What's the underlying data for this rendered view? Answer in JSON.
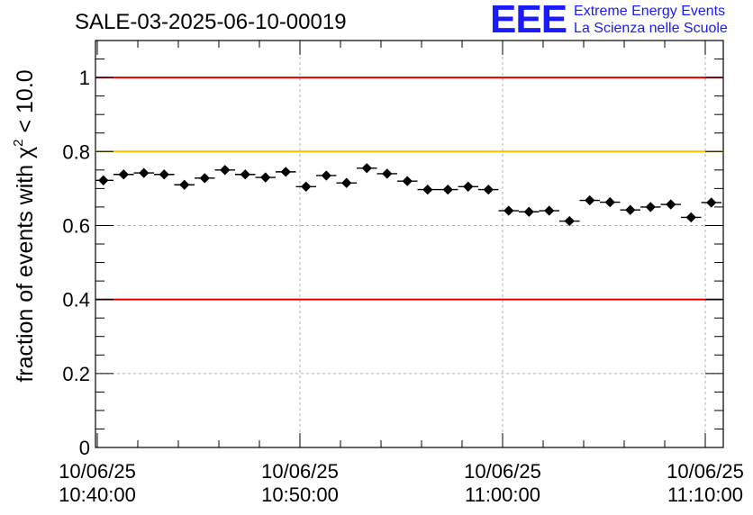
{
  "chart_data": {
    "type": "scatter",
    "title": "SALE-03-2025-06-10-00019",
    "ylabel_main": "fraction of events with χ",
    "ylabel_sup": "2",
    "ylabel_tail": " < 10.0",
    "xlabel": "",
    "xlim_minutes": [
      0,
      31
    ],
    "ylim": [
      0,
      1.1
    ],
    "y_ticks": [
      {
        "value": 0,
        "label": "0"
      },
      {
        "value": 0.2,
        "label": "0.2"
      },
      {
        "value": 0.4,
        "label": "0.4"
      },
      {
        "value": 0.6,
        "label": "0.6"
      },
      {
        "value": 0.8,
        "label": "0.8"
      },
      {
        "value": 1,
        "label": "1"
      }
    ],
    "x_ticks": [
      {
        "minute": 0,
        "date": "10/06/25",
        "time": "10:40:00"
      },
      {
        "minute": 10,
        "date": "10/06/25",
        "time": "10:50:00"
      },
      {
        "minute": 20,
        "date": "10/06/25",
        "time": "11:00:00"
      },
      {
        "minute": 30,
        "date": "10/06/25",
        "time": "11:10:00"
      }
    ],
    "bin_width_minutes": 1,
    "grid": true,
    "reference_lines": [
      {
        "y": 1.0,
        "color": "#e00000"
      },
      {
        "y": 0.8,
        "color": "#ffc000"
      },
      {
        "y": 0.4,
        "color": "#e00000"
      }
    ],
    "series": [
      {
        "name": "fraction",
        "x_minutes": [
          0.3,
          1.3,
          2.3,
          3.3,
          4.3,
          5.3,
          6.3,
          7.3,
          8.3,
          9.3,
          10.3,
          11.3,
          12.3,
          13.3,
          14.3,
          15.3,
          16.3,
          17.3,
          18.3,
          19.3,
          20.3,
          21.3,
          22.3,
          23.3,
          24.3,
          25.3,
          26.3,
          27.3,
          28.3,
          29.3,
          30.3
        ],
        "values": [
          0.722,
          0.738,
          0.742,
          0.738,
          0.71,
          0.728,
          0.75,
          0.738,
          0.73,
          0.745,
          0.705,
          0.735,
          0.715,
          0.755,
          0.74,
          0.72,
          0.697,
          0.697,
          0.705,
          0.697,
          0.64,
          0.637,
          0.64,
          0.612,
          0.668,
          0.663,
          0.642,
          0.65,
          0.657,
          0.622,
          0.662
        ]
      }
    ]
  },
  "logo": {
    "mark": "EEE",
    "line1": "Extreme Energy Events",
    "line2": "La Scienza nelle Scuole",
    "color": "#1a1aff"
  }
}
